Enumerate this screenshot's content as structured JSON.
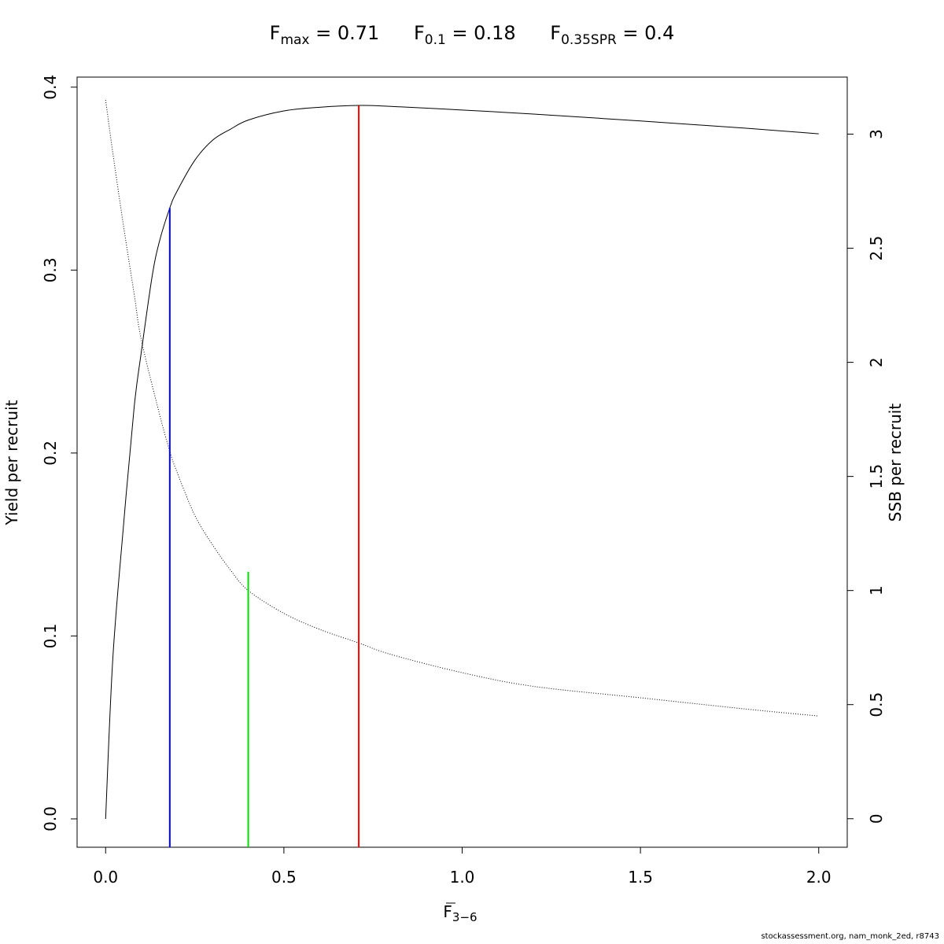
{
  "title": {
    "terms": [
      {
        "base": "F",
        "sub": "max",
        "rest": " = 0.71"
      },
      {
        "base": "F",
        "sub": "0.1",
        "rest": " = 0.18"
      },
      {
        "base": "F",
        "sub": "0.35SPR",
        "rest": " = 0.4"
      }
    ]
  },
  "footer": "stockassessment.org, nam_monk_2ed, r8743",
  "chart_data": {
    "type": "line",
    "xlabel": {
      "base": "F",
      "sub": "3−6"
    },
    "ylabel": "Yield per recruit",
    "y2label": "SSB per recruit",
    "xlim": [
      -0.08,
      2.08
    ],
    "ylim": [
      -0.0155,
      0.4055
    ],
    "y2lim": [
      -0.125,
      3.25
    ],
    "x_ticks": [
      0,
      0.5,
      1,
      1.5,
      2
    ],
    "x_tick_labels": [
      "0.0",
      "0.5",
      "1.0",
      "1.5",
      "2.0"
    ],
    "y_ticks": [
      0,
      0.1,
      0.2,
      0.3,
      0.4
    ],
    "y_tick_labels": [
      "0.0",
      "0.1",
      "0.2",
      "0.3",
      "0.4"
    ],
    "y2_ticks": [
      0,
      0.5,
      1,
      1.5,
      2,
      2.5,
      3
    ],
    "y2_tick_labels": [
      "0",
      "0.5",
      "1",
      "1.5",
      "2",
      "2.5",
      "3"
    ],
    "grid": false,
    "series": [
      {
        "axis": "left",
        "style": "solid",
        "color": "#000000",
        "x": [
          0,
          0.02,
          0.05,
          0.08,
          0.1,
          0.13,
          0.15,
          0.18,
          0.2,
          0.25,
          0.3,
          0.35,
          0.4,
          0.5,
          0.6,
          0.71,
          0.8,
          1.0,
          1.2,
          1.5,
          1.8,
          2.0
        ],
        "y": [
          0,
          0.087,
          0.16,
          0.225,
          0.255,
          0.296,
          0.315,
          0.334,
          0.343,
          0.36,
          0.371,
          0.377,
          0.382,
          0.387,
          0.389,
          0.39,
          0.3895,
          0.3875,
          0.3853,
          0.3815,
          0.3775,
          0.3745
        ]
      },
      {
        "axis": "right",
        "style": "dotted",
        "color": "#000000",
        "x": [
          0,
          0.02,
          0.05,
          0.08,
          0.1,
          0.15,
          0.18,
          0.2,
          0.25,
          0.3,
          0.35,
          0.4,
          0.5,
          0.6,
          0.71,
          0.8,
          1.0,
          1.2,
          1.5,
          1.8,
          2.0
        ],
        "y": [
          3.15,
          2.92,
          2.6,
          2.3,
          2.1,
          1.78,
          1.61,
          1.52,
          1.33,
          1.2,
          1.09,
          1.0,
          0.9,
          0.83,
          0.77,
          0.72,
          0.64,
          0.58,
          0.53,
          0.48,
          0.45
        ]
      }
    ],
    "reference_lines": [
      {
        "name": "F0.1",
        "x": 0.18,
        "y_left": 0.334,
        "color": "#0000ff"
      },
      {
        "name": "F0.35SPR",
        "x": 0.4,
        "y_left": 0.135,
        "color": "#00dd00"
      },
      {
        "name": "Fmax",
        "x": 0.71,
        "y_left": 0.39,
        "color": "#ff0000"
      }
    ]
  }
}
